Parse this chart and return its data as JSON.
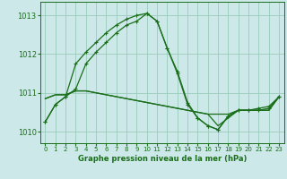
{
  "title": "Graphe pression niveau de la mer (hPa)",
  "background_color": "#cce8e8",
  "grid_color": "#99ccbb",
  "line_color": "#1a6e1a",
  "xlim": [
    -0.5,
    23.5
  ],
  "ylim": [
    1009.7,
    1013.35
  ],
  "yticks": [
    1010,
    1011,
    1012,
    1013
  ],
  "xticks": [
    0,
    1,
    2,
    3,
    4,
    5,
    6,
    7,
    8,
    9,
    10,
    11,
    12,
    13,
    14,
    15,
    16,
    17,
    18,
    19,
    20,
    21,
    22,
    23
  ],
  "s1_x": [
    0,
    1,
    2,
    3,
    4,
    5,
    6,
    7,
    8,
    9,
    10,
    11,
    12,
    13,
    14,
    15,
    16,
    17,
    18,
    19,
    20,
    21,
    22,
    23
  ],
  "s1_y": [
    1010.25,
    1010.7,
    1010.9,
    1011.1,
    1011.75,
    1012.05,
    1012.3,
    1012.55,
    1012.75,
    1012.85,
    1013.05,
    1012.85,
    1012.15,
    1011.5,
    1010.7,
    1010.35,
    1010.15,
    1010.05,
    1010.4,
    1010.55,
    1010.55,
    1010.55,
    1010.6,
    1010.9
  ],
  "s2_x": [
    0,
    1,
    2,
    3,
    4,
    5,
    6,
    7,
    8,
    9,
    10,
    11,
    12,
    13,
    14,
    15,
    16,
    17,
    18,
    19,
    20,
    21,
    22,
    23
  ],
  "s2_y": [
    1010.25,
    1010.7,
    1010.9,
    1011.75,
    1012.05,
    1012.3,
    1012.55,
    1012.75,
    1012.9,
    1013.0,
    1013.05,
    1012.85,
    1012.15,
    1011.55,
    1010.75,
    1010.35,
    1010.15,
    1010.05,
    1010.4,
    1010.55,
    1010.55,
    1010.6,
    1010.65,
    1010.9
  ],
  "s3_x": [
    0,
    1,
    2,
    3,
    4,
    5,
    6,
    7,
    8,
    9,
    10,
    11,
    12,
    13,
    14,
    15,
    16,
    17,
    18,
    19,
    20,
    21,
    22,
    23
  ],
  "s3_y": [
    1010.85,
    1010.95,
    1010.95,
    1011.05,
    1011.05,
    1011.0,
    1010.95,
    1010.9,
    1010.85,
    1010.8,
    1010.75,
    1010.7,
    1010.65,
    1010.6,
    1010.55,
    1010.5,
    1010.45,
    1010.15,
    1010.35,
    1010.55,
    1010.55,
    1010.55,
    1010.55,
    1010.9
  ],
  "s4_x": [
    0,
    1,
    2,
    3,
    4,
    5,
    6,
    7,
    8,
    9,
    10,
    11,
    12,
    13,
    14,
    15,
    16,
    17,
    18,
    19,
    20,
    21,
    22,
    23
  ],
  "s4_y": [
    1010.85,
    1010.95,
    1010.95,
    1011.05,
    1011.05,
    1011.0,
    1010.95,
    1010.9,
    1010.85,
    1010.8,
    1010.75,
    1010.7,
    1010.65,
    1010.6,
    1010.55,
    1010.5,
    1010.45,
    1010.45,
    1010.45,
    1010.55,
    1010.55,
    1010.55,
    1010.55,
    1010.9
  ]
}
